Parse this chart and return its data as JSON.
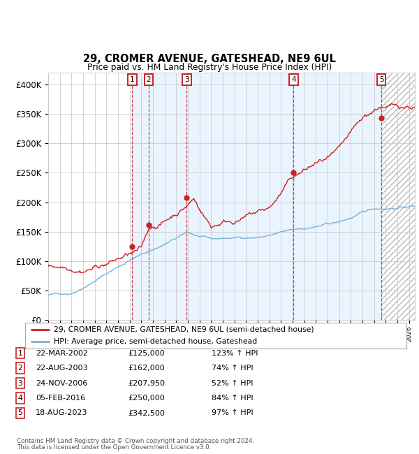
{
  "title1": "29, CROMER AVENUE, GATESHEAD, NE9 6UL",
  "title2": "Price paid vs. HM Land Registry's House Price Index (HPI)",
  "ylabel_ticks": [
    "£0",
    "£50K",
    "£100K",
    "£150K",
    "£200K",
    "£250K",
    "£300K",
    "£350K",
    "£400K"
  ],
  "ytick_values": [
    0,
    50000,
    100000,
    150000,
    200000,
    250000,
    300000,
    350000,
    400000
  ],
  "ylim": [
    0,
    420000
  ],
  "xlim_start": 1995.0,
  "xlim_end": 2026.5,
  "sale_points": [
    {
      "num": 1,
      "year": 2002.22,
      "price": 125000,
      "date": "22-MAR-2002",
      "pct": "123% ↑ HPI",
      "label": "£125,000"
    },
    {
      "num": 2,
      "year": 2003.64,
      "price": 162000,
      "date": "22-AUG-2003",
      "pct": "74% ↑ HPI",
      "label": "£162,000"
    },
    {
      "num": 3,
      "year": 2006.9,
      "price": 207950,
      "date": "24-NOV-2006",
      "pct": "52% ↑ HPI",
      "label": "£207,950"
    },
    {
      "num": 4,
      "year": 2016.09,
      "price": 250000,
      "date": "05-FEB-2016",
      "pct": "84% ↑ HPI",
      "label": "£250,000"
    },
    {
      "num": 5,
      "year": 2023.63,
      "price": 342500,
      "date": "18-AUG-2023",
      "pct": "97% ↑ HPI",
      "label": "£342,500"
    }
  ],
  "hpi_color": "#7bafd4",
  "price_color": "#cc2222",
  "box_color": "#cc2222",
  "bg_color": "#ffffff",
  "grid_color": "#cccccc",
  "shade_color": "#ddeeff",
  "hatch_color": "#bbbbbb",
  "legend_line1": "29, CROMER AVENUE, GATESHEAD, NE9 6UL (semi-detached house)",
  "legend_line2": "HPI: Average price, semi-detached house, Gateshead",
  "footer1": "Contains HM Land Registry data © Crown copyright and database right 2024.",
  "footer2": "This data is licensed under the Open Government Licence v3.0.",
  "table_data": [
    [
      1,
      "22-MAR-2002",
      "£125,000",
      "123% ↑ HPI"
    ],
    [
      2,
      "22-AUG-2003",
      "£162,000",
      "74% ↑ HPI"
    ],
    [
      3,
      "24-NOV-2006",
      "£207,950",
      "52% ↑ HPI"
    ],
    [
      4,
      "05-FEB-2016",
      "£250,000",
      "84% ↑ HPI"
    ],
    [
      5,
      "18-AUG-2023",
      "£342,500",
      "97% ↑ HPI"
    ]
  ]
}
